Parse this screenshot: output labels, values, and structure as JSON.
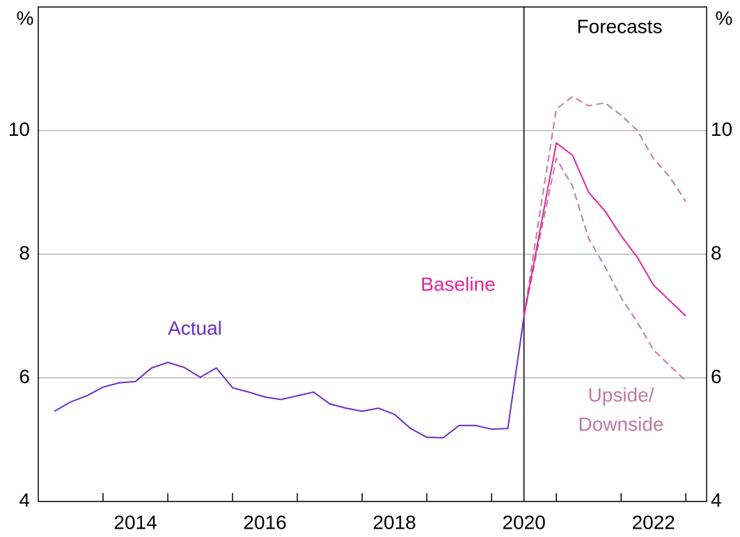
{
  "chart_data": {
    "type": "line",
    "y_unit": "%",
    "y2_unit": "%",
    "xlim": [
      2013,
      2023.32
    ],
    "xticks": [
      {
        "value": 2014.5,
        "label": "2014"
      },
      {
        "value": 2016.5,
        "label": "2016"
      },
      {
        "value": 2018.5,
        "label": "2018"
      },
      {
        "value": 2020.5,
        "label": "2020"
      },
      {
        "value": 2022.5,
        "label": "2022"
      }
    ],
    "xtick_marks": [
      2014,
      2015,
      2016,
      2017,
      2018,
      2019,
      2020,
      2021,
      2022,
      2023
    ],
    "ylim": [
      4,
      12
    ],
    "yticks": [
      4,
      6,
      8,
      10
    ],
    "y2lim": [
      4,
      12
    ],
    "y2ticks": [
      4,
      6,
      8,
      10
    ],
    "grid": true,
    "forecast_label": "Forecasts",
    "forecast_start": 2020.5,
    "series": [
      {
        "name": "Actual",
        "color": "#6a2fc4",
        "x": [
          2013.25,
          2013.5,
          2013.75,
          2014,
          2014.25,
          2014.5,
          2014.75,
          2015,
          2015.25,
          2015.5,
          2015.75,
          2016,
          2016.25,
          2016.5,
          2016.75,
          2017,
          2017.25,
          2017.5,
          2017.75,
          2018,
          2018.25,
          2018.5,
          2018.75,
          2019,
          2019.25,
          2019.5,
          2019.75,
          2020,
          2020.25,
          2020.5
        ],
        "values": [
          5.46,
          5.61,
          5.71,
          5.85,
          5.92,
          5.94,
          6.16,
          6.25,
          6.17,
          6.01,
          6.16,
          5.84,
          5.77,
          5.69,
          5.65,
          5.71,
          5.77,
          5.58,
          5.51,
          5.46,
          5.51,
          5.41,
          5.18,
          5.04,
          5.03,
          5.23,
          5.23,
          5.17,
          5.18,
          6.99
        ]
      },
      {
        "name": "Baseline",
        "color": "#e6239a",
        "x": [
          2020.5,
          2020.75,
          2021,
          2021.25,
          2021.5,
          2021.75,
          2022,
          2022.25,
          2022.5,
          2022.75,
          2023
        ],
        "values": [
          7.0,
          8.4,
          9.8,
          9.6,
          9.0,
          8.7,
          8.3,
          7.95,
          7.5,
          7.25,
          7.0
        ]
      }
    ],
    "scenario_label": [
      "Upside/",
      "Downside"
    ],
    "scenario_color": "#c07aa0",
    "scenarios": [
      {
        "x": [
          2020.5,
          2020.75,
          2021,
          2021.25,
          2021.5,
          2021.75,
          2022,
          2022.25,
          2022.5,
          2022.75,
          2023
        ],
        "values": [
          7.0,
          8.7,
          10.35,
          10.55,
          10.4,
          10.45,
          10.25,
          10.0,
          9.55,
          9.25,
          8.85
        ]
      },
      {
        "x": [
          2020.5,
          2020.75,
          2021,
          2021.25,
          2021.5,
          2021.75,
          2022,
          2022.25,
          2022.5,
          2022.75,
          2023
        ],
        "values": [
          7.0,
          8.3,
          9.55,
          9.1,
          8.25,
          7.8,
          7.3,
          6.9,
          6.45,
          6.2,
          5.95
        ]
      }
    ]
  }
}
